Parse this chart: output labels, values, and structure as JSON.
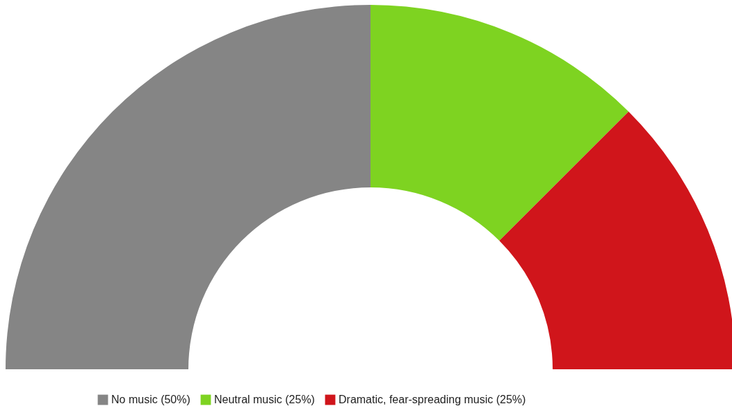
{
  "chart_data": {
    "type": "donut",
    "categories": [
      "No music (50%)",
      "Neutral music (25%)",
      "Dramatic, fear-spreading music (25%)"
    ],
    "values": [
      50,
      25,
      25
    ],
    "colors": [
      "#858585",
      "#7ed321",
      "#d0151b"
    ],
    "legend": "bottom"
  }
}
